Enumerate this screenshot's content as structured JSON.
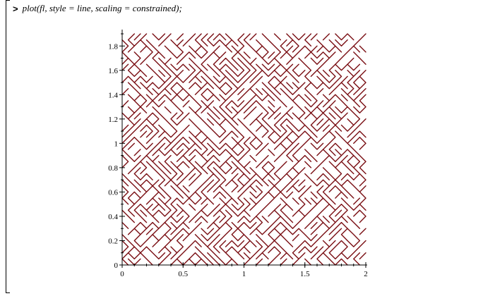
{
  "input": {
    "prompt": ">",
    "command": "plot(fl, style = line, scaling = constrained);"
  },
  "plot": {
    "curve_color": "#7a0f14",
    "axis_color": "#000000"
  },
  "chart_data": {
    "type": "line",
    "title": "",
    "xlabel": "",
    "ylabel": "",
    "xlim": [
      0,
      2
    ],
    "ylim": [
      0,
      1.9
    ],
    "xticks": [
      0,
      0.5,
      1,
      1.5,
      2
    ],
    "xtick_labels": [
      "0",
      "0.5",
      "1",
      "1.5",
      "2"
    ],
    "yticks": [
      0,
      0.2,
      0.4,
      0.6,
      0.8,
      1,
      1.2,
      1.4,
      1.6,
      1.8
    ],
    "ytick_labels": [
      "0",
      "0.2",
      "0.4",
      "0.6",
      "0.8",
      "1",
      "1.2",
      "1.4",
      "1.6",
      "1.8"
    ],
    "grid": false,
    "legend": "none",
    "series": [
      {
        "curve": "space-filling diagonal zig-zag",
        "step": 0.05,
        "x_range": [
          0,
          2
        ],
        "y_range": [
          0,
          1.9
        ]
      }
    ]
  }
}
